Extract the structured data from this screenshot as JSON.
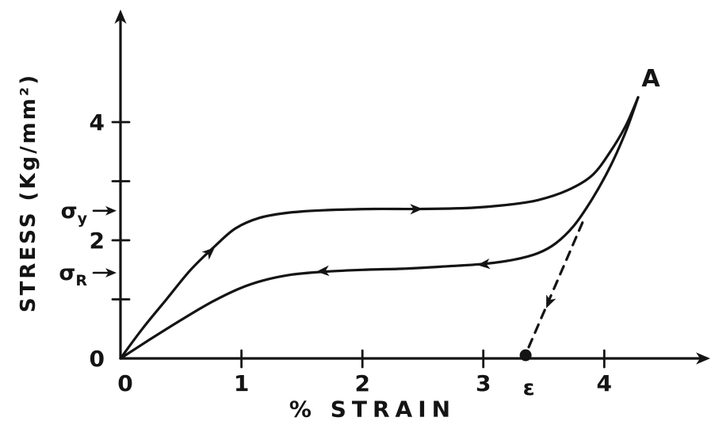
{
  "figure": {
    "description": "Stress-strain hysteresis loop: loading curve to point A, unloading curve back to origin, dashed elastic recovery line to residual strain ε",
    "ink_color": "#141414",
    "background_color": "#ffffff"
  },
  "chart_data": {
    "type": "line",
    "title": "",
    "xlabel": "% STRAIN",
    "ylabel": "STRESS (Kg/mm²)",
    "xlim": [
      0,
      4.85
    ],
    "ylim": [
      0,
      5.88
    ],
    "grid": false,
    "legend": false,
    "x_ticks": [
      {
        "value": 1,
        "label": "1"
      },
      {
        "value": 2,
        "label": "2"
      },
      {
        "value": 3,
        "label": "3"
      },
      {
        "value": 4,
        "label": "4"
      }
    ],
    "y_ticks": [
      {
        "value": 1,
        "label": ""
      },
      {
        "value": 2,
        "label": "2"
      },
      {
        "value": 3,
        "label": ""
      },
      {
        "value": 4,
        "label": "4"
      }
    ],
    "origin_labels": {
      "x": "0",
      "y": "0"
    },
    "series": [
      {
        "name": "loading",
        "dashed": false,
        "points": [
          [
            0,
            0
          ],
          [
            0.18,
            0.5
          ],
          [
            0.38,
            1.0
          ],
          [
            0.58,
            1.5
          ],
          [
            0.78,
            1.9
          ],
          [
            0.95,
            2.2
          ],
          [
            1.15,
            2.38
          ],
          [
            1.4,
            2.47
          ],
          [
            1.7,
            2.51
          ],
          [
            2.1,
            2.53
          ],
          [
            2.5,
            2.53
          ],
          [
            2.9,
            2.55
          ],
          [
            3.2,
            2.6
          ],
          [
            3.45,
            2.68
          ],
          [
            3.7,
            2.85
          ],
          [
            3.9,
            3.1
          ],
          [
            4.05,
            3.5
          ],
          [
            4.18,
            3.95
          ],
          [
            4.28,
            4.42
          ]
        ]
      },
      {
        "name": "unloading",
        "dashed": false,
        "points": [
          [
            4.28,
            4.42
          ],
          [
            4.18,
            3.85
          ],
          [
            4.05,
            3.25
          ],
          [
            3.9,
            2.7
          ],
          [
            3.75,
            2.25
          ],
          [
            3.6,
            1.95
          ],
          [
            3.45,
            1.78
          ],
          [
            3.25,
            1.67
          ],
          [
            3.0,
            1.6
          ],
          [
            2.7,
            1.56
          ],
          [
            2.35,
            1.52
          ],
          [
            2.0,
            1.5
          ],
          [
            1.7,
            1.47
          ],
          [
            1.42,
            1.42
          ],
          [
            1.18,
            1.32
          ],
          [
            0.98,
            1.18
          ],
          [
            0.75,
            0.95
          ],
          [
            0.5,
            0.65
          ],
          [
            0.25,
            0.33
          ],
          [
            0,
            0
          ]
        ]
      },
      {
        "name": "elastic-recovery",
        "dashed": true,
        "points": [
          [
            3.82,
            2.3
          ],
          [
            3.35,
            0.07
          ]
        ]
      }
    ],
    "annotations": {
      "point_A": {
        "x": 4.28,
        "y": 4.42,
        "label": "A"
      },
      "residual_strain": {
        "x": 3.35,
        "y": 0,
        "label": "ε"
      },
      "sigma_y": {
        "value": 2.5,
        "label": "σ",
        "sub": "y"
      },
      "sigma_R": {
        "value": 1.45,
        "label": "σ",
        "sub": "R"
      }
    },
    "arrows": [
      {
        "x": 0.78,
        "y": 1.88,
        "angle": -42,
        "on": "loading"
      },
      {
        "x": 2.5,
        "y": 2.53,
        "angle": -1,
        "on": "loading"
      },
      {
        "x": 2.95,
        "y": 1.58,
        "angle": 174,
        "on": "unloading"
      },
      {
        "x": 1.62,
        "y": 1.47,
        "angle": 176,
        "on": "unloading"
      },
      {
        "x": 3.52,
        "y": 0.85,
        "angle": 113,
        "on": "elastic-recovery"
      }
    ]
  }
}
